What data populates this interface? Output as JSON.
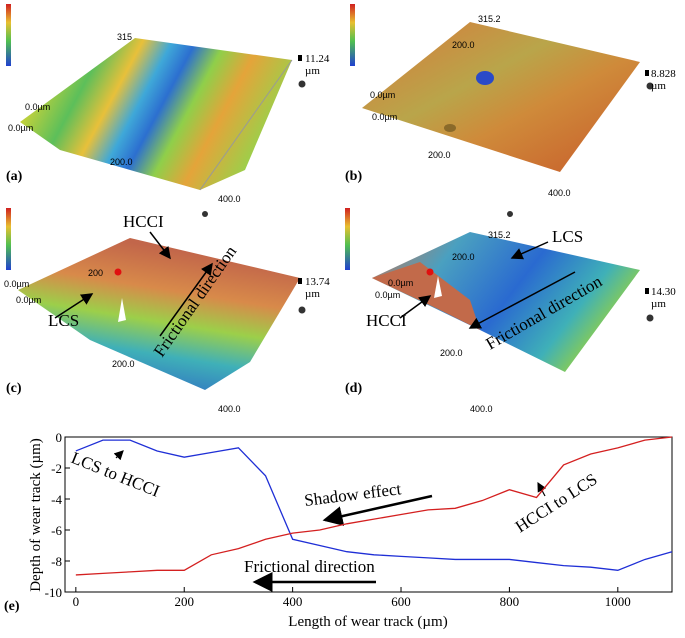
{
  "panels": [
    {
      "label": "(a)",
      "texts": [
        "315",
        "11.24",
        "µm",
        "0.0µm",
        "0.0µm",
        "200.0",
        "400.0"
      ]
    },
    {
      "label": "(b)",
      "texts": [
        "315.2",
        "200.0",
        "8.828",
        "µm",
        "0.0µm",
        "0.0µm",
        "200.0",
        "400.0"
      ]
    },
    {
      "label": "(c)",
      "texts": [
        "HCCI",
        "200",
        "13.74",
        "µm",
        "0.0µm",
        "0.0µm",
        "LCS",
        "Frictional direction",
        "200.0",
        "400.0"
      ]
    },
    {
      "label": "(d)",
      "texts": [
        "315.2",
        "LCS",
        "200.0",
        "0.0µm",
        "0.0µm",
        "14.30",
        "µm",
        "HCCI",
        "Frictional direction",
        "200.0",
        "400.0"
      ]
    }
  ],
  "chart_data": {
    "type": "line",
    "label": "(e)",
    "x_label": "Length of wear track (µm)",
    "y_label": "Depth of wear track (µm)",
    "x": [
      0,
      50,
      100,
      150,
      200,
      250,
      300,
      350,
      400,
      450,
      500,
      550,
      600,
      650,
      700,
      750,
      800,
      850,
      900,
      950,
      1000,
      1050,
      1100
    ],
    "series": [
      {
        "color": "#1f2fd6",
        "values": [
          -0.9,
          -0.2,
          -0.2,
          -0.9,
          -1.3,
          -1.0,
          -0.7,
          -2.5,
          -6.6,
          -7.0,
          -7.4,
          -7.6,
          -7.7,
          -7.8,
          -7.9,
          -7.9,
          -7.9,
          -8.1,
          -8.3,
          -8.4,
          -8.6,
          -7.9,
          -7.4
        ]
      },
      {
        "color": "#d42020",
        "values": [
          -8.9,
          -8.8,
          -8.7,
          -8.6,
          -8.6,
          -7.6,
          -7.2,
          -6.6,
          -6.2,
          -6.0,
          -5.6,
          -5.3,
          -5.0,
          -4.7,
          -4.6,
          -4.1,
          -3.4,
          -3.9,
          -1.8,
          -1.1,
          -0.7,
          -0.2,
          0
        ]
      }
    ],
    "annotations": [
      "LCS to HCCI",
      "Shadow effect",
      "HCCI to LCS",
      "Frictional direction"
    ],
    "xlim": [
      -20,
      1100
    ],
    "ylim": [
      -10,
      0
    ],
    "xticks": [
      0,
      200,
      400,
      600,
      800,
      1000
    ],
    "yticks": [
      0,
      -2,
      -4,
      -6,
      -8,
      -10
    ]
  }
}
